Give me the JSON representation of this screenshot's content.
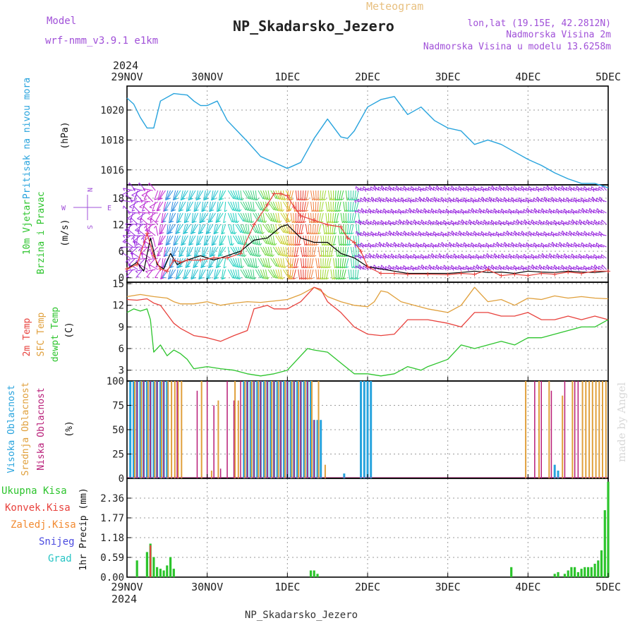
{
  "header": {
    "model_label": "Model",
    "model_name": "wrf-nmm_v3.9.1 e1km",
    "meteogram": "Meteogram",
    "title": "NP_Skadarsko_Jezero",
    "lonlat": "lon,lat (19.15E, 42.2812N)",
    "elevation": "Nadmorska Visina 2m",
    "model_elevation": "Nadmorska Visina u modelu 13.6258m",
    "footer": "NP_Skadarsko_Jezero",
    "watermark": "made by Angel"
  },
  "colors": {
    "pressure": "#27a3dd",
    "temp2m": "#e8413c",
    "sfc": "#e0a03c",
    "dewpt": "#2cc42c",
    "wind_black": "#000000",
    "wind_red": "#e8413c",
    "cloud_high": "#27a3dd",
    "cloud_mid": "#e0a03c",
    "cloud_low": "#b81d78",
    "precip_total": "#2cc42c",
    "precip_conv": "#e8413c",
    "precip_freezing": "#f28a30",
    "snow": "#4a4ae0",
    "grad": "#27c4c4",
    "model": "#a050d8",
    "meteogram": "#e8c080"
  },
  "chart_data": [
    {
      "type": "line",
      "ylabel": [
        "Pritisak na nivou mora",
        "(hPa)"
      ],
      "x_ticks": [
        "29NOV",
        "30NOV",
        "1DEC",
        "2DEC",
        "3DEC",
        "4DEC",
        "5DEC"
      ],
      "year": "2024",
      "yticks": [
        1016,
        1018,
        1020
      ],
      "ylim": [
        1015.0,
        1021.6
      ],
      "series": [
        {
          "x": [
            0,
            2,
            4,
            6,
            8,
            10,
            14,
            18,
            20,
            22,
            24,
            27,
            30,
            33,
            36,
            40,
            44,
            48,
            52,
            56,
            60,
            64,
            66,
            68,
            72,
            76,
            80,
            84,
            88,
            92,
            96,
            100,
            104,
            108,
            112,
            116,
            120,
            124,
            128,
            132,
            136,
            140,
            144
          ],
          "values": [
            1020.8,
            1020.4,
            1019.5,
            1018.8,
            1018.8,
            1020.6,
            1021.1,
            1021.0,
            1020.6,
            1020.3,
            1020.3,
            1020.6,
            1019.3,
            1018.6,
            1017.9,
            1016.9,
            1016.5,
            1016.1,
            1016.5,
            1018.1,
            1019.4,
            1018.2,
            1018.1,
            1018.6,
            1020.2,
            1020.7,
            1020.9,
            1019.7,
            1020.2,
            1019.3,
            1018.8,
            1018.6,
            1017.7,
            1018.0,
            1017.7,
            1017.2,
            1016.7,
            1016.3,
            1015.8,
            1015.4,
            1015.1,
            1015.1,
            1014.8
          ]
        }
      ]
    },
    {
      "type": "line",
      "ylabel": [
        "10m Vjetar",
        "Brzina i Pravac",
        "(m/s)"
      ],
      "compass": [
        "N",
        "W",
        "E",
        "S"
      ],
      "yticks": [
        0,
        6,
        12,
        18
      ],
      "ylim": [
        -1,
        21
      ],
      "series": [
        {
          "x": [
            0,
            3,
            5,
            7,
            9,
            11,
            13,
            15,
            18,
            22,
            26,
            30,
            34,
            38,
            42,
            46,
            48,
            52,
            56,
            60,
            64,
            68,
            72,
            76,
            80,
            84,
            90,
            96,
            100,
            104,
            108,
            112,
            116,
            120,
            124,
            128,
            132,
            136,
            140,
            144
          ],
          "values": [
            2.0,
            3.5,
            1.5,
            9.0,
            3.0,
            2.0,
            5.5,
            3.0,
            4.0,
            5.0,
            4.0,
            5.0,
            6.0,
            8.5,
            9.0,
            11.5,
            12.0,
            9.0,
            8.0,
            8.0,
            5.5,
            4.5,
            2.5,
            2.0,
            1.5,
            1.0,
            1.0,
            1.0,
            1.2,
            1.5,
            1.2,
            1.3,
            1.0,
            1.5,
            1.3,
            1.2,
            1.5,
            1.3,
            1.2,
            1.5
          ]
        },
        {
          "x": [
            0,
            3,
            6,
            8,
            10,
            12,
            14,
            16,
            18,
            22,
            26,
            30,
            34,
            38,
            42,
            44,
            46,
            48,
            50,
            52,
            56,
            60,
            64,
            66,
            68,
            70,
            72,
            76,
            80,
            84,
            90,
            96,
            100,
            104,
            108,
            112,
            116,
            120,
            124,
            128,
            132,
            136,
            140,
            144
          ],
          "values": [
            2.0,
            3.0,
            10.0,
            5.0,
            2.0,
            1.5,
            4.0,
            3.5,
            4.0,
            4.0,
            4.5,
            4.5,
            5.5,
            12.0,
            16.5,
            19.0,
            19.0,
            18.5,
            16.0,
            14.0,
            13.0,
            12.0,
            11.5,
            9.0,
            8.0,
            6.0,
            2.5,
            1.0,
            1.0,
            0.8,
            0.8,
            0.7,
            1.0,
            0.8,
            1.8,
            0.5,
            0.8,
            0.5,
            1.0,
            0.8,
            1.3,
            1.0,
            1.5,
            1.5
          ]
        }
      ]
    },
    {
      "type": "line",
      "ylabel": [
        "2m Temp",
        "SFC Temp",
        "dewpt Temp",
        "(C)"
      ],
      "yticks": [
        3,
        6,
        9,
        12,
        15
      ],
      "ylim": [
        1.5,
        15.2
      ],
      "series": [
        {
          "x": [
            0,
            3,
            6,
            8,
            10,
            14,
            16,
            20,
            24,
            28,
            32,
            36,
            38,
            42,
            44,
            48,
            52,
            56,
            58,
            60,
            64,
            68,
            72,
            76,
            80,
            84,
            90,
            96,
            100,
            104,
            108,
            112,
            116,
            120,
            124,
            128,
            132,
            136,
            140,
            144
          ],
          "values": [
            12.8,
            12.7,
            12.9,
            12.3,
            12.0,
            9.5,
            8.8,
            7.8,
            7.5,
            7.0,
            7.8,
            8.5,
            11.5,
            12.0,
            11.5,
            11.5,
            12.5,
            14.5,
            14.2,
            12.5,
            11.0,
            9.0,
            8.0,
            7.8,
            8.0,
            10.0,
            10.0,
            9.5,
            9.0,
            11.0,
            11.0,
            10.5,
            10.5,
            11.0,
            10.0,
            10.0,
            10.5,
            10.0,
            10.5,
            10.0
          ]
        },
        {
          "x": [
            0,
            4,
            8,
            12,
            14,
            16,
            20,
            24,
            28,
            32,
            36,
            40,
            44,
            48,
            52,
            56,
            58,
            60,
            64,
            68,
            72,
            74,
            76,
            78,
            82,
            86,
            90,
            96,
            100,
            104,
            106,
            108,
            112,
            116,
            120,
            124,
            128,
            132,
            136,
            140,
            144
          ],
          "values": [
            13.2,
            13.5,
            13.2,
            13.0,
            12.5,
            12.2,
            12.2,
            12.5,
            12.0,
            12.3,
            12.5,
            12.4,
            12.6,
            12.8,
            13.5,
            14.5,
            14.0,
            13.2,
            12.5,
            12.0,
            11.8,
            12.5,
            14.0,
            13.8,
            12.5,
            12.0,
            11.5,
            11.0,
            12.0,
            14.5,
            13.5,
            12.5,
            12.8,
            12.0,
            13.0,
            12.8,
            13.3,
            13.0,
            13.2,
            13.0,
            12.9
          ]
        },
        {
          "x": [
            0,
            2,
            4,
            6,
            7,
            8,
            10,
            12,
            14,
            16,
            18,
            20,
            24,
            28,
            32,
            36,
            40,
            44,
            48,
            52,
            54,
            56,
            60,
            64,
            68,
            72,
            76,
            80,
            84,
            88,
            90,
            96,
            100,
            104,
            108,
            112,
            116,
            120,
            124,
            128,
            132,
            136,
            140,
            144
          ],
          "values": [
            11.0,
            11.5,
            11.2,
            11.5,
            10.0,
            5.5,
            6.5,
            5.0,
            5.8,
            5.3,
            4.5,
            3.2,
            3.5,
            3.2,
            3.0,
            2.5,
            2.2,
            2.5,
            3.0,
            5.0,
            6.0,
            5.8,
            5.5,
            4.0,
            2.5,
            2.5,
            2.2,
            2.5,
            3.5,
            3.0,
            3.5,
            4.5,
            6.5,
            6.0,
            6.5,
            7.0,
            6.5,
            7.5,
            7.5,
            8.0,
            8.5,
            9.0,
            9.0,
            10.0
          ]
        }
      ]
    },
    {
      "type": "bar",
      "ylabel": [
        "Visoka Oblacnost",
        "Srednja Oblacnost",
        "Niska Oblacnost",
        "(%)"
      ],
      "yticks": [
        0,
        25,
        50,
        75,
        100
      ],
      "ylim": [
        0,
        100
      ],
      "series": [
        {
          "name": "high",
          "hours": [
            1,
            2,
            3,
            4,
            5,
            6,
            7,
            8,
            9,
            10,
            11,
            12,
            35,
            36,
            37,
            38,
            39,
            40,
            41,
            42,
            43,
            44,
            45,
            46,
            47,
            48,
            49,
            50,
            51,
            52,
            53,
            54,
            55,
            56,
            57,
            58,
            65,
            70,
            71,
            72,
            73,
            128,
            129
          ],
          "values": [
            100,
            100,
            100,
            100,
            100,
            100,
            100,
            100,
            100,
            100,
            100,
            100,
            100,
            100,
            100,
            100,
            100,
            100,
            100,
            100,
            100,
            100,
            100,
            100,
            100,
            100,
            100,
            100,
            100,
            100,
            100,
            100,
            100,
            60,
            60,
            60,
            5,
            100,
            100,
            100,
            100,
            14,
            8
          ]
        },
        {
          "name": "mid",
          "hours": [
            2,
            4,
            6,
            8,
            10,
            12,
            13,
            14,
            15,
            16,
            22,
            25,
            27,
            32,
            33,
            35,
            37,
            39,
            41,
            43,
            45,
            47,
            49,
            51,
            53,
            55,
            57,
            59,
            119,
            123,
            126,
            130,
            133,
            136,
            137,
            138,
            139,
            140,
            141,
            142,
            143
          ],
          "values": [
            100,
            100,
            100,
            100,
            100,
            100,
            100,
            100,
            100,
            100,
            100,
            8,
            80,
            100,
            80,
            100,
            100,
            100,
            100,
            100,
            100,
            100,
            100,
            100,
            100,
            100,
            100,
            14,
            100,
            100,
            100,
            85,
            100,
            100,
            100,
            100,
            100,
            100,
            100,
            100,
            100
          ]
        },
        {
          "name": "low",
          "hours": [
            3,
            5,
            7,
            9,
            11,
            15,
            21,
            24,
            26,
            28,
            30,
            32,
            34,
            36,
            38,
            40,
            42,
            44,
            46,
            48,
            50,
            52,
            54,
            56,
            122,
            124,
            127,
            131,
            134,
            135
          ],
          "values": [
            100,
            100,
            100,
            100,
            100,
            100,
            90,
            100,
            75,
            10,
            100,
            80,
            100,
            100,
            100,
            100,
            100,
            100,
            100,
            100,
            100,
            100,
            100,
            60,
            100,
            100,
            90,
            100,
            100,
            100
          ]
        }
      ]
    },
    {
      "type": "bar",
      "ylabel": [
        "1hr Precip (mm)"
      ],
      "legend": [
        "Ukupna Kisa",
        "Konvek.Kisa",
        "Zaledj.Kisa",
        "Snijeg",
        "Grad"
      ],
      "yticks": [
        0,
        0.59,
        1.18,
        1.77,
        2.36
      ],
      "ylim": [
        0,
        2.95
      ],
      "series": [
        {
          "name": "total",
          "hours": [
            3,
            6,
            7,
            8,
            9,
            10,
            11,
            12,
            13,
            14,
            55,
            56,
            57,
            115,
            128,
            129,
            131,
            132,
            133,
            134,
            135,
            136,
            137,
            138,
            139,
            140,
            141,
            142,
            143,
            144
          ],
          "values": [
            0.5,
            0.75,
            1.0,
            0.6,
            0.3,
            0.25,
            0.2,
            0.35,
            0.6,
            0.25,
            0.2,
            0.2,
            0.1,
            0.3,
            0.1,
            0.15,
            0.1,
            0.2,
            0.3,
            0.3,
            0.15,
            0.25,
            0.3,
            0.3,
            0.3,
            0.4,
            0.5,
            0.8,
            2.0,
            2.85
          ]
        },
        {
          "name": "convective",
          "hours": [
            7
          ],
          "values": [
            0.95
          ]
        }
      ]
    }
  ]
}
